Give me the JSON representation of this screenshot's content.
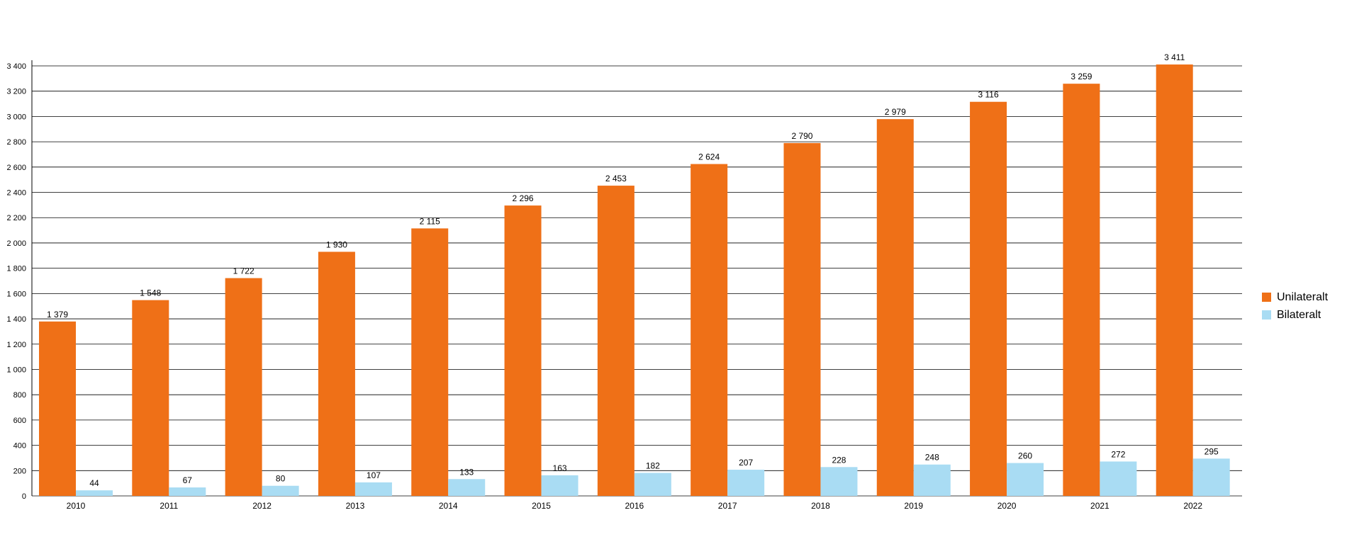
{
  "chart_data": {
    "type": "bar",
    "categories": [
      "2010",
      "2011",
      "2012",
      "2013",
      "2014",
      "2015",
      "2016",
      "2017",
      "2018",
      "2019",
      "2020",
      "2021",
      "2022"
    ],
    "series": [
      {
        "name": "Unilateralt",
        "color": "#EF7017",
        "values": [
          1379,
          1548,
          1722,
          1930,
          2115,
          2296,
          2453,
          2624,
          2790,
          2979,
          3116,
          3259,
          3411
        ],
        "labels": [
          "1 379",
          "1 548",
          "1 722",
          "1 930",
          "2 115",
          "2 296",
          "2 453",
          "2 624",
          "2 790",
          "2 979",
          "3 116",
          "3 259",
          "3 411"
        ]
      },
      {
        "name": "Bilateralt",
        "color": "#A9DCF3",
        "values": [
          44,
          67,
          80,
          107,
          133,
          163,
          182,
          207,
          228,
          248,
          260,
          272,
          295
        ],
        "labels": [
          "44",
          "67",
          "80",
          "107",
          "133",
          "163",
          "182",
          "207",
          "228",
          "248",
          "260",
          "272",
          "295"
        ]
      }
    ],
    "yticks": [
      0,
      200,
      400,
      600,
      800,
      1000,
      1200,
      1400,
      1600,
      1800,
      2000,
      2200,
      2400,
      2600,
      2800,
      3000,
      3200,
      3400
    ],
    "ytick_labels": [
      "0",
      "200",
      "400",
      "600",
      "800",
      "1 000",
      "1 200",
      "1 400",
      "1 600",
      "1 800",
      "2 000",
      "2 200",
      "2 400",
      "2 600",
      "2 800",
      "3 000",
      "3 200",
      "3 400"
    ],
    "ylim": [
      0,
      3400
    ],
    "grid": true,
    "legend_position": "right",
    "title": "",
    "xlabel": "",
    "ylabel": ""
  }
}
